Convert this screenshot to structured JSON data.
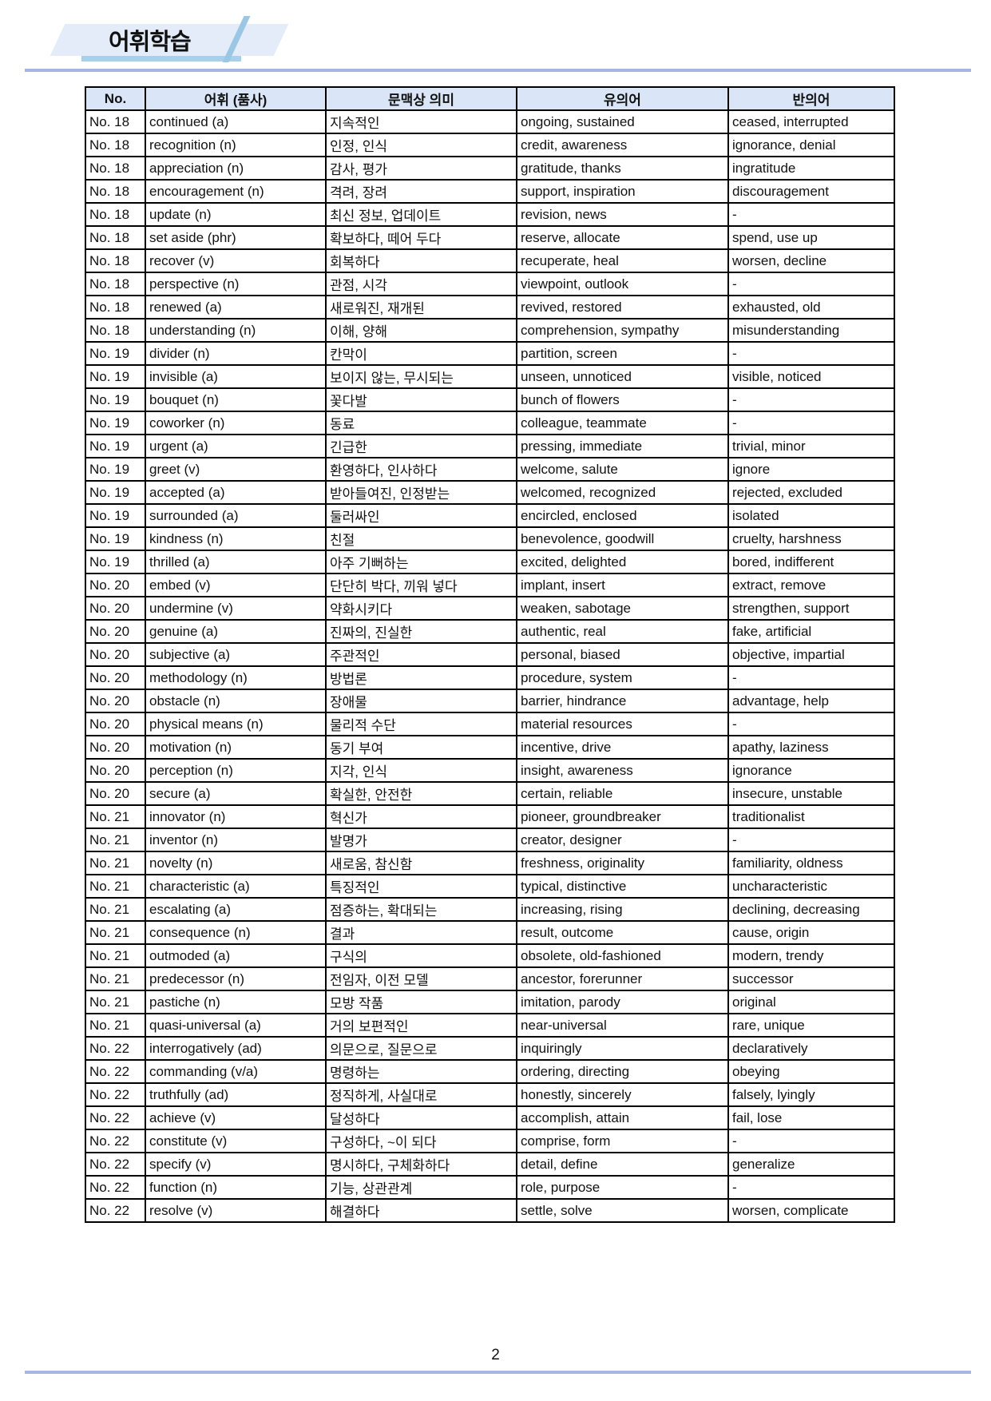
{
  "header": {
    "title": "어휘학습"
  },
  "table": {
    "columns": [
      "No.",
      "어휘 (품사)",
      "문맥상 의미",
      "유의어",
      "반의어"
    ],
    "rows": [
      [
        "No. 18",
        "continued (a)",
        "지속적인",
        "ongoing, sustained",
        "ceased, interrupted"
      ],
      [
        "No. 18",
        "recognition (n)",
        "인정, 인식",
        "credit, awareness",
        "ignorance, denial"
      ],
      [
        "No. 18",
        "appreciation (n)",
        "감사, 평가",
        "gratitude, thanks",
        "ingratitude"
      ],
      [
        "No. 18",
        "encouragement (n)",
        "격려, 장려",
        "support, inspiration",
        "discouragement"
      ],
      [
        "No. 18",
        "update (n)",
        "최신 정보, 업데이트",
        "revision, news",
        "-"
      ],
      [
        "No. 18",
        "set aside (phr)",
        "확보하다, 떼어 두다",
        "reserve, allocate",
        "spend, use up"
      ],
      [
        "No. 18",
        "recover (v)",
        "회복하다",
        "recuperate, heal",
        "worsen, decline"
      ],
      [
        "No. 18",
        "perspective (n)",
        "관점, 시각",
        "viewpoint, outlook",
        "-"
      ],
      [
        "No. 18",
        "renewed (a)",
        "새로워진, 재개된",
        "revived, restored",
        "exhausted, old"
      ],
      [
        "No. 18",
        "understanding (n)",
        "이해, 양해",
        "comprehension, sympathy",
        "misunderstanding"
      ],
      [
        "No. 19",
        "divider (n)",
        "칸막이",
        "partition, screen",
        "-"
      ],
      [
        "No. 19",
        "invisible (a)",
        "보이지 않는, 무시되는",
        "unseen, unnoticed",
        "visible, noticed"
      ],
      [
        "No. 19",
        "bouquet (n)",
        "꽃다발",
        "bunch of flowers",
        "-"
      ],
      [
        "No. 19",
        "coworker (n)",
        "동료",
        "colleague, teammate",
        "-"
      ],
      [
        "No. 19",
        "urgent (a)",
        "긴급한",
        "pressing, immediate",
        "trivial, minor"
      ],
      [
        "No. 19",
        "greet (v)",
        "환영하다, 인사하다",
        "welcome, salute",
        "ignore"
      ],
      [
        "No. 19",
        "accepted (a)",
        "받아들여진, 인정받는",
        "welcomed, recognized",
        "rejected, excluded"
      ],
      [
        "No. 19",
        "surrounded (a)",
        "둘러싸인",
        "encircled, enclosed",
        "isolated"
      ],
      [
        "No. 19",
        "kindness (n)",
        "친절",
        "benevolence, goodwill",
        "cruelty, harshness"
      ],
      [
        "No. 19",
        "thrilled (a)",
        "아주 기뻐하는",
        "excited, delighted",
        "bored, indifferent"
      ],
      [
        "No. 20",
        "embed (v)",
        "단단히 박다, 끼워 넣다",
        "implant, insert",
        "extract, remove"
      ],
      [
        "No. 20",
        "undermine (v)",
        "약화시키다",
        "weaken, sabotage",
        "strengthen, support"
      ],
      [
        "No. 20",
        "genuine (a)",
        "진짜의, 진실한",
        "authentic, real",
        "fake, artificial"
      ],
      [
        "No. 20",
        "subjective (a)",
        "주관적인",
        "personal, biased",
        "objective, impartial"
      ],
      [
        "No. 20",
        "methodology (n)",
        "방법론",
        "procedure, system",
        "-"
      ],
      [
        "No. 20",
        "obstacle (n)",
        "장애물",
        "barrier, hindrance",
        "advantage, help"
      ],
      [
        "No. 20",
        "physical means (n)",
        "물리적 수단",
        "material resources",
        "-"
      ],
      [
        "No. 20",
        "motivation (n)",
        "동기 부여",
        "incentive, drive",
        "apathy, laziness"
      ],
      [
        "No. 20",
        "perception (n)",
        "지각, 인식",
        "insight, awareness",
        "ignorance"
      ],
      [
        "No. 20",
        "secure (a)",
        "확실한, 안전한",
        "certain, reliable",
        "insecure, unstable"
      ],
      [
        "No. 21",
        "innovator (n)",
        "혁신가",
        "pioneer, groundbreaker",
        "traditionalist"
      ],
      [
        "No. 21",
        "inventor (n)",
        "발명가",
        "creator, designer",
        "-"
      ],
      [
        "No. 21",
        "novelty (n)",
        "새로움, 참신함",
        "freshness, originality",
        "familiarity, oldness"
      ],
      [
        "No. 21",
        "characteristic (a)",
        "특징적인",
        "typical, distinctive",
        "uncharacteristic"
      ],
      [
        "No. 21",
        "escalating (a)",
        "점증하는, 확대되는",
        "increasing, rising",
        "declining, decreasing"
      ],
      [
        "No. 21",
        "consequence (n)",
        "결과",
        "result, outcome",
        "cause, origin"
      ],
      [
        "No. 21",
        "outmoded (a)",
        "구식의",
        "obsolete, old-fashioned",
        "modern, trendy"
      ],
      [
        "No. 21",
        "predecessor (n)",
        "전임자, 이전 모델",
        "ancestor, forerunner",
        "successor"
      ],
      [
        "No. 21",
        "pastiche (n)",
        "모방 작품",
        "imitation, parody",
        "original"
      ],
      [
        "No. 21",
        "quasi-universal (a)",
        "거의 보편적인",
        "near-universal",
        "rare, unique"
      ],
      [
        "No. 22",
        "interrogatively (ad)",
        "의문으로, 질문으로",
        "inquiringly",
        "declaratively"
      ],
      [
        "No. 22",
        "commanding (v/a)",
        "명령하는",
        "ordering, directing",
        "obeying"
      ],
      [
        "No. 22",
        "truthfully (ad)",
        "정직하게, 사실대로",
        "honestly, sincerely",
        "falsely, lyingly"
      ],
      [
        "No. 22",
        "achieve (v)",
        "달성하다",
        "accomplish, attain",
        "fail, lose"
      ],
      [
        "No. 22",
        "constitute (v)",
        "구성하다, ~이 되다",
        "comprise, form",
        "-"
      ],
      [
        "No. 22",
        "specify (v)",
        "명시하다, 구체화하다",
        "detail, define",
        "generalize"
      ],
      [
        "No. 22",
        "function (n)",
        "기능, 상관관계",
        "role, purpose",
        "-"
      ],
      [
        "No. 22",
        "resolve (v)",
        "해결하다",
        "settle, solve",
        "worsen, complicate"
      ]
    ]
  },
  "footer": {
    "page_number": "2"
  },
  "colors": {
    "header_fill": "#dae6f7",
    "rule": "#a6b6e3",
    "logo_band": "#e3ecf8"
  }
}
